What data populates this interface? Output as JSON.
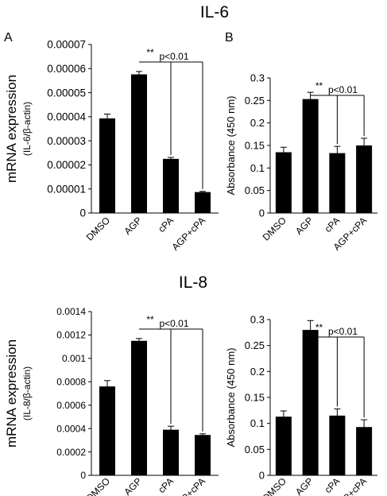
{
  "figure": {
    "title_top": "IL-6",
    "title_bottom": "IL-8",
    "label_a": "A",
    "label_b": "B"
  },
  "chart_data": [
    {
      "type": "bar",
      "panel": "IL-6 mRNA",
      "categories": [
        "DMSO",
        "AGP",
        "cPA",
        "AGP+cPA"
      ],
      "values": [
        3.93e-05,
        5.76e-05,
        2.25e-05,
        8.7e-06
      ],
      "errors": [
        1.8e-06,
        1.2e-06,
        6e-07,
        3e-07
      ],
      "ylabel": "mRNA expression",
      "ylabel2": "(IL-6/β-actin)",
      "ylim": [
        0,
        7e-05
      ],
      "yticks": [
        0,
        1e-05,
        2e-05,
        3e-05,
        4e-05,
        5e-05,
        6e-05,
        7e-05
      ],
      "ytick_labels": [
        "0",
        "0.00001",
        "0.00002",
        "0.00003",
        "0.00004",
        "0.00005",
        "0.00006",
        "0.00007"
      ],
      "significance": {
        "stars": "**",
        "text": "p<0.01",
        "from": "AGP",
        "to": [
          "cPA",
          "AGP+cPA"
        ]
      }
    },
    {
      "type": "bar",
      "panel": "IL-6 Absorbance",
      "categories": [
        "DMSO",
        "AGP",
        "cPA",
        "AGP+cPA"
      ],
      "values": [
        0.135,
        0.253,
        0.133,
        0.15
      ],
      "errors": [
        0.011,
        0.015,
        0.015,
        0.016
      ],
      "ylabel": "Absorbance (450 nm)",
      "ylim": [
        0,
        0.3
      ],
      "yticks": [
        0,
        0.05,
        0.1,
        0.15,
        0.2,
        0.25,
        0.3
      ],
      "ytick_labels": [
        "0",
        "0.05",
        "0.1",
        "0.15",
        "0.2",
        "0.25",
        "0.3"
      ],
      "significance": {
        "stars": "**",
        "text": "p<0.01",
        "from": "AGP",
        "to": [
          "cPA",
          "AGP+cPA"
        ]
      }
    },
    {
      "type": "bar",
      "panel": "IL-8 mRNA",
      "categories": [
        "DMSO",
        "AGP",
        "cPA",
        "AGP+cPA"
      ],
      "values": [
        0.00076,
        0.00115,
        0.00039,
        0.000345
      ],
      "errors": [
        5e-05,
        2e-05,
        3e-05,
        1e-05
      ],
      "ylabel": "mRNA expression",
      "ylabel2": "(IL-8/β-actin)",
      "ylim": [
        0,
        0.0014
      ],
      "yticks": [
        0,
        0.0002,
        0.0004,
        0.0006,
        0.0008,
        0.001,
        0.0012,
        0.0014
      ],
      "ytick_labels": [
        "0",
        "0.0002",
        "0.0004",
        "0.0006",
        "0.0008",
        "0.001",
        "0.0012",
        "0.0014"
      ],
      "significance": {
        "stars": "**",
        "text": "p<0.01",
        "from": "AGP",
        "to": [
          "cPA",
          "AGP+cPA"
        ]
      }
    },
    {
      "type": "bar",
      "panel": "IL-8 Absorbance",
      "categories": [
        "DMSO",
        "AGP",
        "cPA",
        "AGP+cPA"
      ],
      "values": [
        0.113,
        0.28,
        0.115,
        0.093
      ],
      "errors": [
        0.011,
        0.018,
        0.013,
        0.014
      ],
      "ylabel": "Absorbance (450 nm)",
      "ylim": [
        0,
        0.3
      ],
      "yticks": [
        0,
        0.05,
        0.1,
        0.15,
        0.2,
        0.25,
        0.3
      ],
      "ytick_labels": [
        "0",
        "0.05",
        "0.1",
        "0.15",
        "0.2",
        "0.25",
        "0.3"
      ],
      "significance": {
        "stars": "**",
        "text": "p<0.01",
        "from": "AGP",
        "to": [
          "cPA",
          "AGP+cPA"
        ]
      }
    }
  ]
}
